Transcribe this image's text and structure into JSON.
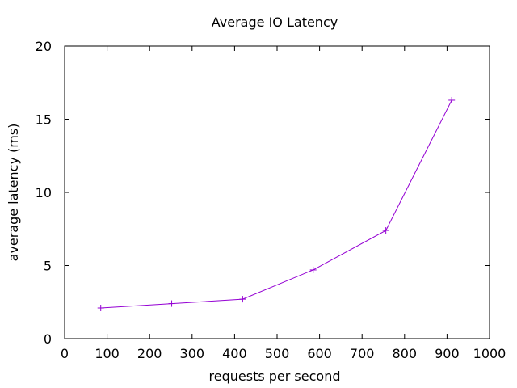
{
  "chart_data": {
    "type": "line",
    "title": "Average IO Latency",
    "xlabel": "requests per second",
    "ylabel": "average latency (ms)",
    "xlim": [
      0,
      1000
    ],
    "ylim": [
      0,
      20
    ],
    "xticks": [
      0,
      100,
      200,
      300,
      400,
      500,
      600,
      700,
      800,
      900,
      1000
    ],
    "yticks": [
      0,
      5,
      10,
      15,
      20
    ],
    "xtick_labels": [
      "0",
      "100",
      "200",
      "300",
      "400",
      "500",
      "600",
      "700",
      "800",
      "900",
      "1000"
    ],
    "ytick_labels": [
      "0",
      "5",
      "10",
      "15",
      "20"
    ],
    "grid": false,
    "legend": "none",
    "series": [
      {
        "color": "#9400d3",
        "marker": "plus",
        "points": [
          {
            "x": 85,
            "y": 2.1
          },
          {
            "x": 252,
            "y": 2.4
          },
          {
            "x": 419,
            "y": 2.7
          },
          {
            "x": 585,
            "y": 4.7
          },
          {
            "x": 756,
            "y": 7.4
          },
          {
            "x": 911,
            "y": 16.3
          }
        ]
      }
    ]
  }
}
